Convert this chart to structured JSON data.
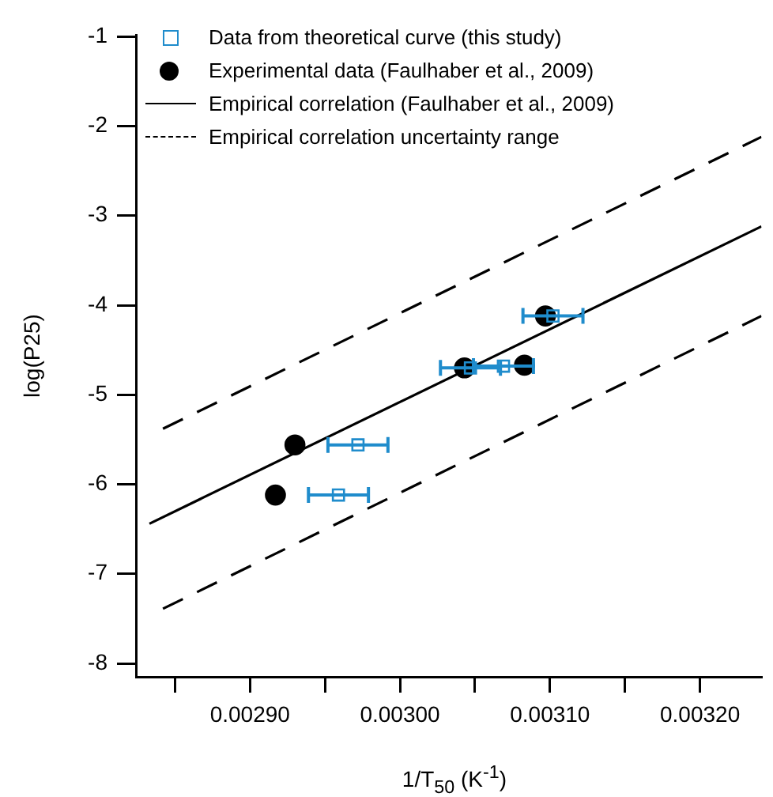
{
  "chart_data": {
    "type": "scatter",
    "xlabel": "1/T$_{50}$ (K$^{-1}$)",
    "ylabel": "log(P25)",
    "xlim": [
      0.002824,
      0.003241
    ],
    "xticks": [
      {
        "value": 0.00285,
        "label": null
      },
      {
        "value": 0.0029,
        "label": "0.00290"
      },
      {
        "value": 0.00295,
        "label": null
      },
      {
        "value": 0.003,
        "label": "0.00300"
      },
      {
        "value": 0.00305,
        "label": null
      },
      {
        "value": 0.0031,
        "label": "0.00310"
      },
      {
        "value": 0.00315,
        "label": null
      },
      {
        "value": 0.0032,
        "label": "0.00320"
      }
    ],
    "ylim": [
      -8.15,
      -0.98
    ],
    "yticks": [
      -8,
      -7,
      -6,
      -5,
      -4,
      -3,
      -2,
      -1
    ],
    "grid": false,
    "legend": "top left",
    "series": [
      {
        "name": "Data from theoretical curve (this study)",
        "marker": "square",
        "color": "#1f8ccc",
        "x": [
          0.002959,
          0.002972,
          0.003047,
          0.003069,
          0.003102
        ],
        "values": [
          -6.12,
          -5.56,
          -4.7,
          -4.68,
          -4.12
        ],
        "xerrors": [
          2e-05,
          2e-05,
          2e-05,
          2e-05,
          2e-05
        ]
      },
      {
        "name": "Experimental data (Faulhaber et al., 2009)",
        "marker": "circle",
        "color": "#000000",
        "x": [
          0.002917,
          0.00293,
          0.003043,
          0.003083,
          0.003097
        ],
        "values": [
          -6.12,
          -5.56,
          -4.7,
          -4.67,
          -4.12
        ]
      },
      {
        "name": "Empirical correlation (Faulhaber et al., 2009)",
        "type": "line",
        "line_style": "solid",
        "marker": "none",
        "color": "#000000",
        "x": [
          0.002833,
          0.003241
        ],
        "values": [
          -6.44,
          -3.12
        ]
      },
      {
        "name": "Empirical correlation uncertainty range",
        "type": "line",
        "line_style": "dashed",
        "marker": "none",
        "color": "#000000",
        "x": [
          0.002842,
          0.003241
        ],
        "values": [
          -5.38,
          -2.12
        ]
      },
      {
        "type": "line",
        "line_style": "dashed",
        "marker": "none",
        "color": "#000000",
        "x": [
          0.002842,
          0.003241
        ],
        "values": [
          -7.39,
          -4.12
        ]
      }
    ]
  }
}
